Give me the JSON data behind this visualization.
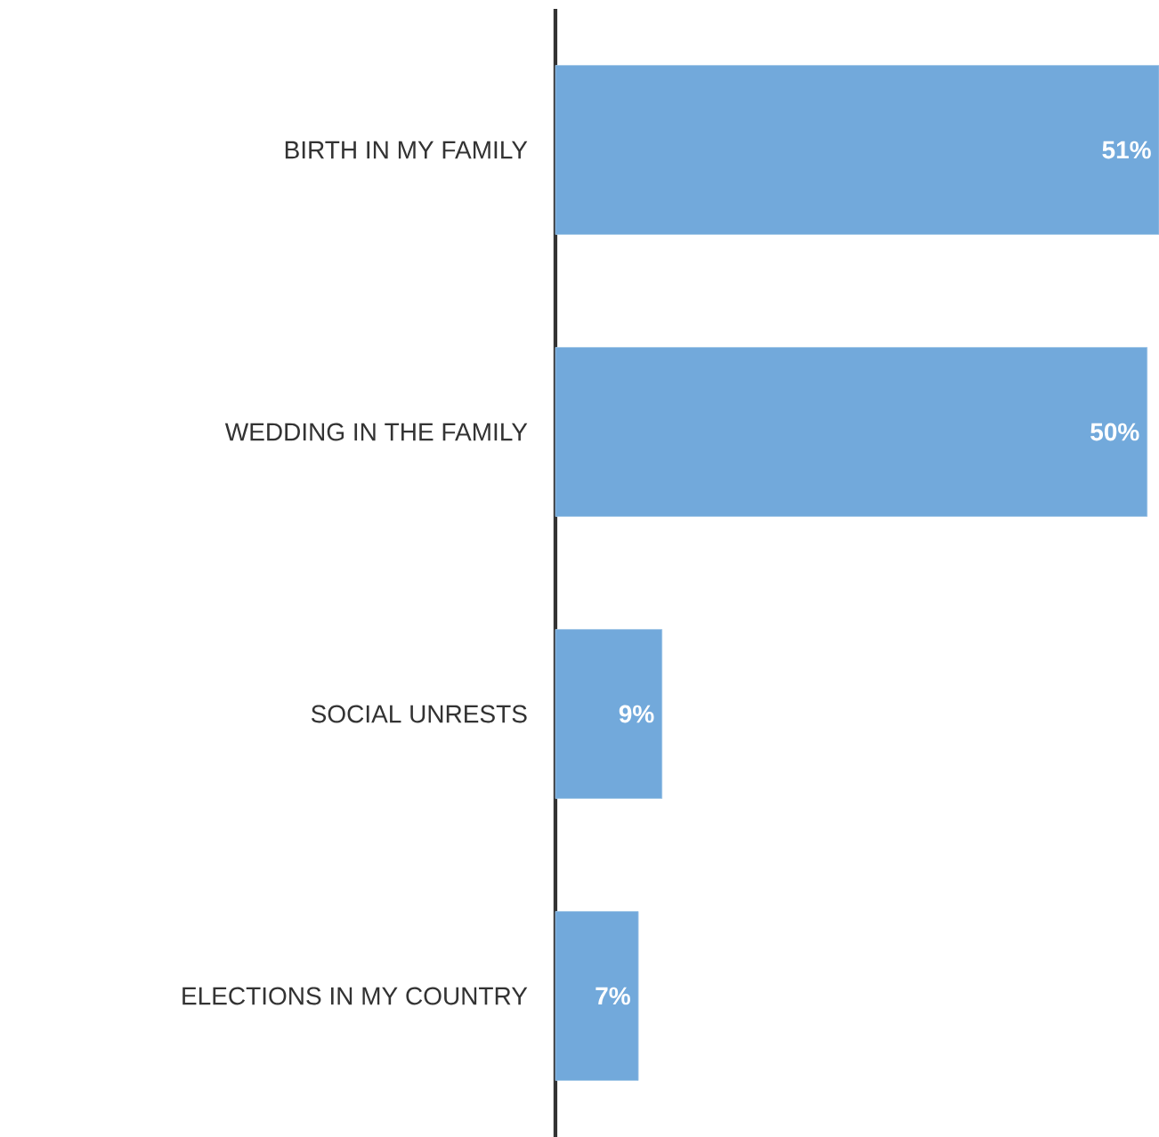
{
  "chart_data": {
    "type": "bar",
    "orientation": "horizontal",
    "categories": [
      "BIRTH IN MY FAMILY",
      "WEDDING IN THE FAMILY",
      "SOCIAL UNRESTS",
      "ELECTIONS IN MY COUNTRY"
    ],
    "values": [
      51,
      50,
      9,
      7
    ],
    "color": "#72a9db",
    "value_labels": [
      "51%",
      "50%",
      "9%",
      "7%"
    ]
  }
}
